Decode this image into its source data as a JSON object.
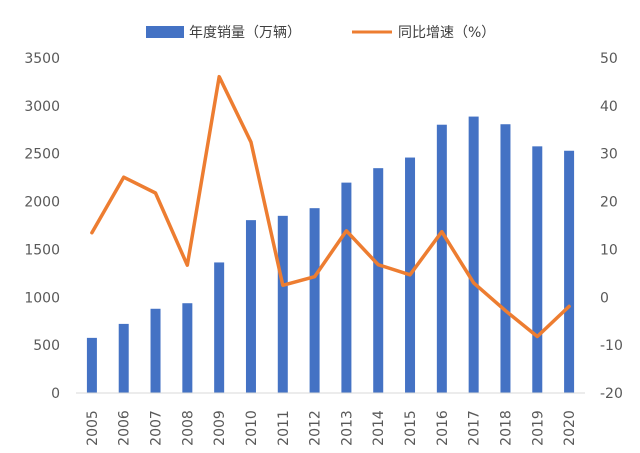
{
  "chart_data": {
    "type": "bar",
    "categories": [
      "2005",
      "2006",
      "2007",
      "2008",
      "2009",
      "2010",
      "2011",
      "2012",
      "2013",
      "2014",
      "2015",
      "2016",
      "2017",
      "2018",
      "2019",
      "2020"
    ],
    "series": [
      {
        "name": "年度销量（万辆）",
        "type": "bar",
        "axis": "left",
        "color": "#4472C4",
        "values": [
          576,
          722,
          880,
          938,
          1364,
          1806,
          1851,
          1931,
          2198,
          2349,
          2460,
          2803,
          2888,
          2808,
          2577,
          2531
        ]
      },
      {
        "name": "同比增速（%）",
        "type": "line",
        "axis": "right",
        "color": "#ED7D31",
        "values": [
          13.5,
          25.1,
          21.8,
          6.7,
          46.1,
          32.4,
          2.5,
          4.3,
          13.9,
          6.8,
          4.7,
          13.7,
          3.0,
          -2.8,
          -8.2,
          -1.9
        ]
      }
    ],
    "y_left": {
      "ylim": [
        0,
        3500
      ],
      "ticks": [
        "0",
        "500",
        "1000",
        "1500",
        "2000",
        "2500",
        "3000",
        "3500"
      ]
    },
    "y_right": {
      "ylim": [
        -20,
        50
      ],
      "ticks": [
        "-20",
        "-10",
        "0",
        "10",
        "20",
        "30",
        "40",
        "50"
      ]
    },
    "legend": {
      "position": "top"
    },
    "grid": false
  }
}
